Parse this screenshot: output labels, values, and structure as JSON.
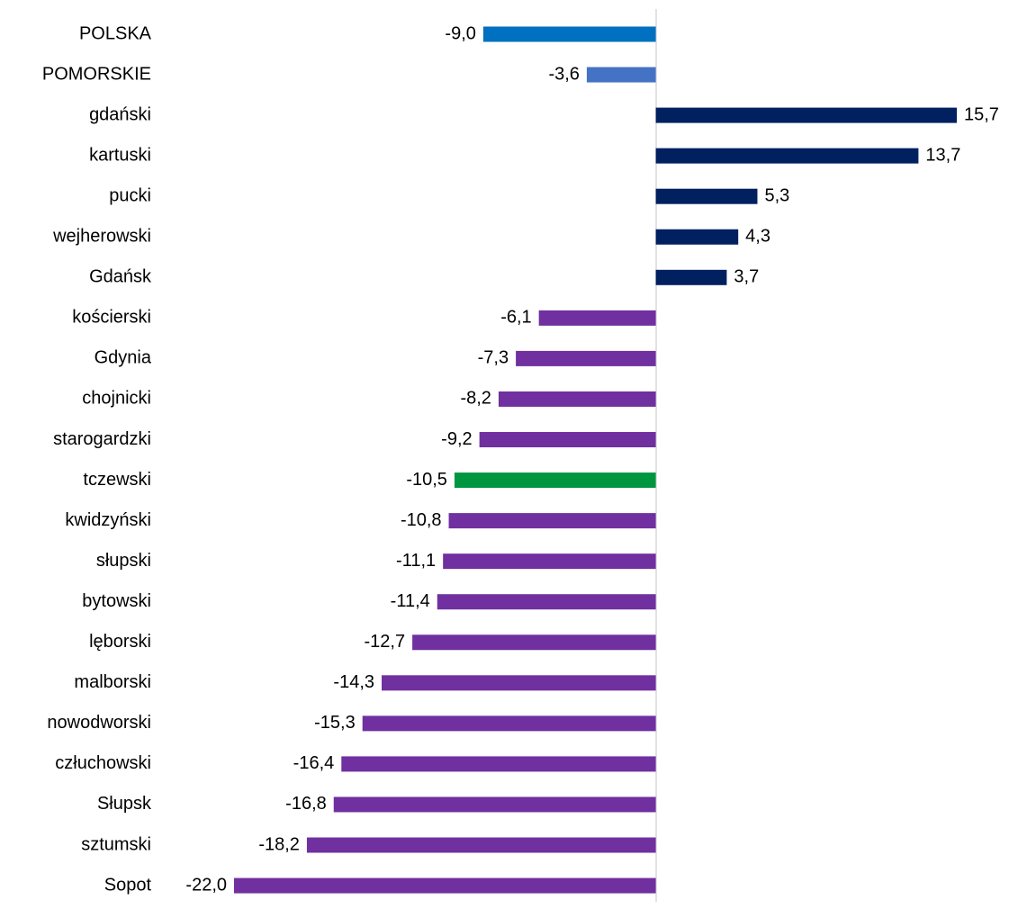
{
  "chart_data": {
    "type": "bar",
    "orientation": "horizontal",
    "categories": [
      "POLSKA",
      "POMORSKIE",
      "gdański",
      "kartuski",
      "pucki",
      "wejherowski",
      "Gdańsk",
      "kościerski",
      "Gdynia",
      "chojnicki",
      "starogardzki",
      "tczewski",
      "kwidzyński",
      "słupski",
      "bytowski",
      "lęborski",
      "malborski",
      "nowodworski",
      "człuchowski",
      "Słupsk",
      "sztumski",
      "Sopot"
    ],
    "values": [
      -9.0,
      -3.6,
      15.7,
      13.7,
      5.3,
      4.3,
      3.7,
      -6.1,
      -7.3,
      -8.2,
      -9.2,
      -10.5,
      -10.8,
      -11.1,
      -11.4,
      -12.7,
      -14.3,
      -15.3,
      -16.4,
      -16.8,
      -18.2,
      -22.0
    ],
    "value_labels": [
      "-9,0",
      "-3,6",
      "15,7",
      "13,7",
      "5,3",
      "4,3",
      "3,7",
      "-6,1",
      "-7,3",
      "-8,2",
      "-9,2",
      "-10,5",
      "-10,8",
      "-11,1",
      "-11,4",
      "-12,7",
      "-14,3",
      "-15,3",
      "-16,4",
      "-16,8",
      "-18,2",
      "-22,0"
    ],
    "colors": [
      "#0070c0",
      "#4472c4",
      "#002060",
      "#002060",
      "#002060",
      "#002060",
      "#002060",
      "#7030a0",
      "#7030a0",
      "#7030a0",
      "#7030a0",
      "#00963f",
      "#7030a0",
      "#7030a0",
      "#7030a0",
      "#7030a0",
      "#7030a0",
      "#7030a0",
      "#7030a0",
      "#7030a0",
      "#7030a0",
      "#7030a0"
    ],
    "grid": false
  }
}
